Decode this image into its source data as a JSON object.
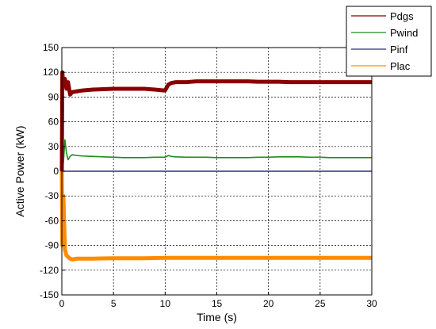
{
  "chart_data": {
    "type": "line",
    "title": "",
    "xlabel": "Time (s)",
    "ylabel": "Active Power (kW)",
    "xlim": [
      0,
      30
    ],
    "ylim": [
      -150,
      150
    ],
    "xticks": [
      0,
      5,
      10,
      15,
      20,
      25,
      30
    ],
    "yticks": [
      150,
      120,
      90,
      60,
      30,
      0,
      -30,
      -60,
      -90,
      -120,
      -150
    ],
    "grid": true,
    "legend_position": "top-right",
    "series": [
      {
        "name": "Pdgs",
        "color": "#8b0000",
        "thick": true,
        "x": [
          0,
          0.05,
          0.15,
          0.3,
          0.45,
          0.6,
          0.8,
          1.0,
          1.5,
          2,
          3,
          4,
          5,
          6,
          7,
          8,
          9,
          9.9,
          10.0,
          10.3,
          10.6,
          11,
          12,
          13,
          14,
          15,
          16,
          17,
          18,
          19,
          20,
          21,
          22,
          23,
          24,
          25,
          26,
          27,
          28,
          29,
          30
        ],
        "y": [
          0,
          120,
          104,
          112,
          100,
          108,
          93,
          96,
          97,
          98,
          99,
          99.5,
          100,
          100,
          100,
          100,
          99,
          98,
          98,
          105,
          107,
          108,
          108,
          109,
          109,
          109,
          109,
          109,
          109,
          108.5,
          108.5,
          108.5,
          108,
          108,
          108,
          108,
          108,
          108,
          108,
          108,
          108
        ]
      },
      {
        "name": "Pwind",
        "color": "#1e8c1e",
        "thick": false,
        "x": [
          0,
          0.05,
          0.15,
          0.3,
          0.45,
          0.6,
          0.8,
          1.0,
          1.5,
          2,
          3,
          4,
          5,
          6,
          7,
          8,
          9,
          9.9,
          10.0,
          10.3,
          10.6,
          11,
          12,
          13,
          14,
          15,
          16,
          17,
          18,
          19,
          20,
          21,
          22,
          23,
          24,
          25,
          26,
          27,
          28,
          29,
          30
        ],
        "y": [
          0,
          30,
          10,
          38,
          22,
          14,
          18,
          20,
          19,
          18.5,
          18,
          17.5,
          17,
          16.5,
          16.5,
          16.5,
          17,
          17,
          17,
          19,
          18,
          17.5,
          17,
          17,
          17,
          16.5,
          16.5,
          16.5,
          16.5,
          17,
          17,
          17.5,
          17.5,
          17.5,
          17,
          17,
          16.5,
          16.5,
          16.5,
          16.5,
          16.5
        ]
      },
      {
        "name": "Pinf",
        "color": "#2b2b8c",
        "thick": false,
        "x": [
          0,
          30
        ],
        "y": [
          0,
          0
        ]
      },
      {
        "name": "Plac",
        "color": "#ff8c00",
        "thick": true,
        "x": [
          0,
          0.05,
          0.15,
          0.3,
          0.45,
          0.6,
          0.8,
          1.0,
          1.5,
          2,
          3,
          5,
          8,
          10,
          12,
          15,
          18,
          20,
          25,
          30
        ],
        "y": [
          0,
          -90,
          -30,
          -95,
          -102,
          -104,
          -106,
          -107,
          -106,
          -106,
          -106,
          -105.5,
          -105.5,
          -105,
          -105,
          -105,
          -105,
          -105,
          -105,
          -105
        ]
      }
    ]
  }
}
